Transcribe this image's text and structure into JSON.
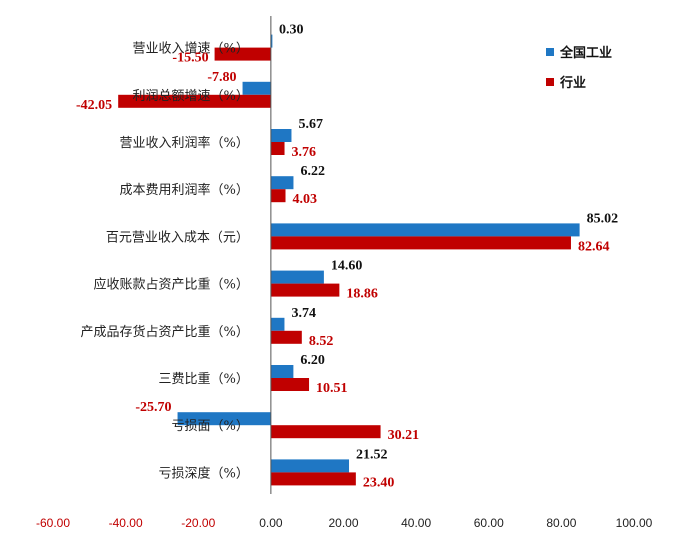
{
  "chart_data": {
    "type": "bar",
    "orientation": "horizontal",
    "categories": [
      "营业收入增速（%）",
      "利润总额增速（%）",
      "营业收入利润率（%）",
      "成本费用利润率（%）",
      "百元营业收入成本（元）",
      "应收账款占资产比重（%）",
      "产成品存货占资产比重（%）",
      "三费比重（%）",
      "亏损面（%）",
      "亏损深度（%）"
    ],
    "series": [
      {
        "name": "全国工业",
        "color": "#1f77c4",
        "labels": [
          "0.30",
          "-7.80",
          "5.67",
          "6.22",
          "85.02",
          "14.60",
          "3.74",
          "6.20",
          "-25.70",
          "21.52"
        ],
        "values": [
          0.3,
          -7.8,
          5.67,
          6.22,
          85.02,
          14.6,
          3.74,
          6.2,
          -25.7,
          21.52
        ]
      },
      {
        "name": "行业",
        "color": "#c00000",
        "labels": [
          "-15.50",
          "-42.05",
          "3.76",
          "4.03",
          "82.64",
          "18.86",
          "8.52",
          "10.51",
          "30.21",
          "23.40"
        ],
        "values": [
          -15.5,
          -42.05,
          3.76,
          4.03,
          82.64,
          18.86,
          8.52,
          10.51,
          30.21,
          23.4
        ]
      }
    ],
    "xlim": [
      -60,
      100
    ],
    "xticks": [
      "-60.00",
      "-40.00",
      "-20.00",
      "0.00",
      "20.00",
      "40.00",
      "60.00",
      "80.00",
      "100.00"
    ],
    "xtick_values": [
      -60,
      -40,
      -20,
      0,
      20,
      40,
      60,
      80,
      100
    ],
    "negative_tick_color": "#c00000",
    "positive_tick_color": "#222222",
    "grid": false,
    "legend_position": "top-right"
  }
}
